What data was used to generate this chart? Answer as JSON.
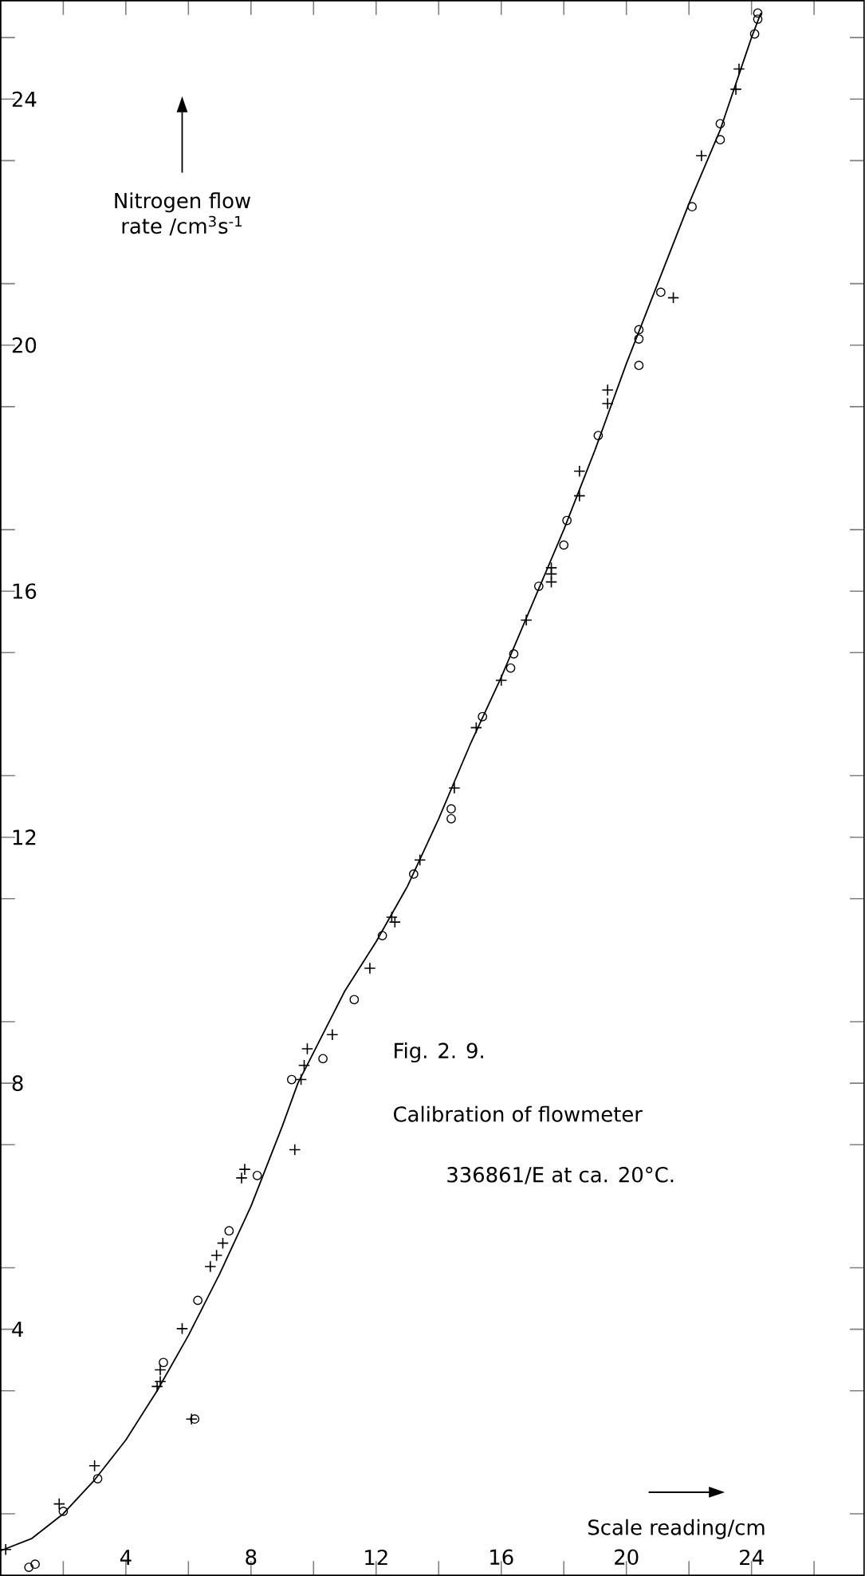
{
  "chart_data": {
    "type": "scatter",
    "xlabel": "Scale reading/cm",
    "ylabel": "Nitrogen flow rate /cm$^{3}$s$^{-1}$",
    "annotations": [
      "Fig. 2. 9.",
      "Calibration of flowmeter",
      "336861/E at ca. 20°C."
    ],
    "xlim": [
      0,
      27.6
    ],
    "ylim": [
      0,
      25.6
    ],
    "xticks": [
      4,
      8,
      12,
      16,
      20,
      24
    ],
    "yticks": [
      4,
      8,
      12,
      16,
      20,
      24
    ],
    "grid": false,
    "series": [
      {
        "type": "line",
        "color": "#000000",
        "marker": "none",
        "line_style": "solid",
        "x": [
          0,
          1,
          2,
          3,
          4,
          5,
          6,
          7,
          8,
          9,
          9.5,
          10,
          11,
          12,
          13,
          14,
          15,
          16,
          17,
          18,
          19,
          20,
          21,
          22,
          23,
          24,
          24.3
        ],
        "values": [
          0.4,
          0.6,
          1.0,
          1.55,
          2.2,
          3.0,
          3.9,
          4.9,
          6.0,
          7.3,
          8.0,
          8.5,
          9.5,
          10.3,
          11.2,
          12.3,
          13.5,
          14.6,
          15.8,
          17.0,
          18.3,
          19.7,
          21.0,
          22.3,
          23.5,
          25.0,
          25.4
        ]
      },
      {
        "color": "#000000",
        "marker": "circle",
        "x": [
          0.9,
          1.1,
          2.0,
          3.1,
          6.2,
          5.2,
          6.3,
          7.3,
          8.2,
          9.3,
          10.3,
          11.3,
          12.2,
          13.2,
          14.4,
          14.4,
          15.4,
          16.3,
          16.4,
          17.2,
          18.0,
          18.1,
          19.1,
          20.4,
          20.4,
          20.4,
          21.1,
          22.1,
          23.0,
          23.0,
          24.1,
          24.2,
          24.2
        ],
        "values": [
          0.13,
          0.18,
          1.04,
          1.57,
          2.54,
          3.46,
          4.47,
          5.6,
          6.5,
          8.06,
          8.4,
          9.36,
          10.4,
          11.4,
          12.46,
          12.3,
          13.96,
          14.75,
          14.98,
          16.08,
          16.75,
          17.15,
          18.53,
          20.25,
          20.1,
          19.67,
          20.86,
          22.25,
          23.34,
          23.6,
          25.06,
          25.3,
          25.4
        ]
      },
      {
        "color": "#000000",
        "marker": "cross",
        "x": [
          0.16,
          1.87,
          3.0,
          6.1,
          5.0,
          5.1,
          5.1,
          5.8,
          6.7,
          6.9,
          7.1,
          7.7,
          7.8,
          9.4,
          9.6,
          9.7,
          9.8,
          10.6,
          11.8,
          12.5,
          12.6,
          13.4,
          14.5,
          15.2,
          16.0,
          16.8,
          17.6,
          17.6,
          17.6,
          18.5,
          18.5,
          19.4,
          19.4,
          21.5,
          22.4,
          23.5,
          23.6
        ],
        "values": [
          0.42,
          1.16,
          1.78,
          2.54,
          3.07,
          3.15,
          3.34,
          4.01,
          5.02,
          5.2,
          5.4,
          6.46,
          6.6,
          6.92,
          8.06,
          8.29,
          8.56,
          8.79,
          9.87,
          10.7,
          10.62,
          11.63,
          12.8,
          13.78,
          14.55,
          15.53,
          16.15,
          16.38,
          16.28,
          17.55,
          17.95,
          19.05,
          19.27,
          20.77,
          23.08,
          24.16,
          24.49
        ]
      }
    ]
  }
}
